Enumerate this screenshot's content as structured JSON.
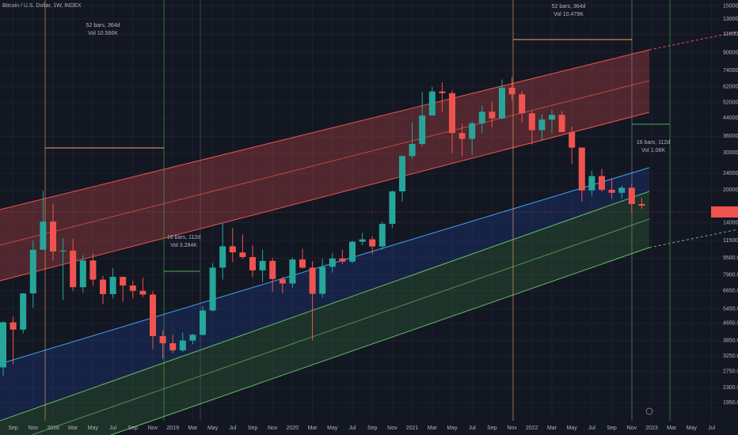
{
  "chart_data": {
    "type": "candlestick",
    "title": "Bitcoin / U.S. Dollar, 1W, INDEX",
    "x": [
      "2017-08",
      "2017-09",
      "2017-10",
      "2017-11",
      "2017-12",
      "2018-01",
      "2018-02",
      "2018-03",
      "2018-04",
      "2018-05",
      "2018-06",
      "2018-07",
      "2018-08",
      "2018-09",
      "2018-10",
      "2018-11",
      "2018-12",
      "2019-01",
      "2019-02",
      "2019-03",
      "2019-04",
      "2019-05",
      "2019-06",
      "2019-07",
      "2019-08",
      "2019-09",
      "2019-10",
      "2019-11",
      "2019-12",
      "2020-01",
      "2020-02",
      "2020-03",
      "2020-04",
      "2020-05",
      "2020-06",
      "2020-07",
      "2020-08",
      "2020-09",
      "2020-10",
      "2020-11",
      "2020-12",
      "2021-01",
      "2021-02",
      "2021-03",
      "2021-04",
      "2021-05",
      "2021-06",
      "2021-07",
      "2021-08",
      "2021-09",
      "2021-10",
      "2021-11",
      "2021-12",
      "2022-01",
      "2022-02",
      "2022-03",
      "2022-04",
      "2022-05",
      "2022-06",
      "2022-07",
      "2022-08",
      "2022-09",
      "2022-10",
      "2022-11",
      "2022-12"
    ],
    "open": [
      2870,
      4700,
      4340,
      6450,
      10400,
      14150,
      10200,
      10300,
      6900,
      9250,
      7500,
      6400,
      7730,
      7030,
      6630,
      6370,
      4040,
      3740,
      3460,
      3850,
      4100,
      5350,
      8550,
      10800,
      10100,
      9600,
      8300,
      9200,
      7550,
      7190,
      9350,
      8550,
      6420,
      8630,
      9450,
      9140,
      11350,
      11650,
      10780,
      13800,
      19700,
      28990,
      33100,
      45200,
      58800,
      57700,
      37300,
      35000,
      41500,
      47100,
      43800,
      61300,
      57000,
      46300,
      38500,
      43200,
      45500,
      37700,
      31800,
      19900,
      23300,
      20050,
      19400,
      20500,
      17150
    ],
    "high": [
      4740,
      5000,
      6470,
      11500,
      19800,
      17200,
      11800,
      11700,
      9800,
      10000,
      7800,
      8500,
      7750,
      7400,
      7680,
      6600,
      4300,
      4100,
      4200,
      4150,
      5600,
      9000,
      13900,
      13200,
      12300,
      10900,
      10400,
      9500,
      7750,
      9560,
      10500,
      9180,
      9450,
      10050,
      10400,
      11450,
      12480,
      12060,
      14100,
      19900,
      29300,
      41950,
      58350,
      61800,
      64850,
      59500,
      41300,
      42400,
      50500,
      52900,
      67000,
      69000,
      59000,
      48000,
      45800,
      48200,
      47400,
      40000,
      31900,
      24700,
      25200,
      22800,
      21000,
      21500,
      18400
    ],
    "low": [
      2600,
      2970,
      4150,
      5500,
      10400,
      9200,
      6000,
      6600,
      6500,
      7030,
      5750,
      6100,
      5880,
      6100,
      6200,
      3500,
      3150,
      3350,
      3400,
      3700,
      4060,
      5300,
      7500,
      9100,
      9400,
      7700,
      7300,
      6550,
      6450,
      6870,
      8450,
      3850,
      6150,
      8100,
      8900,
      8980,
      10950,
      9900,
      10400,
      13200,
      17600,
      28100,
      32300,
      45000,
      47000,
      30000,
      28800,
      29300,
      37300,
      39600,
      43300,
      53300,
      42000,
      32900,
      34300,
      37200,
      37600,
      26700,
      17600,
      18800,
      19600,
      18150,
      18200,
      15500,
      16300
    ],
    "close": [
      4700,
      4340,
      6450,
      10400,
      14150,
      10200,
      10300,
      6900,
      9250,
      7500,
      6400,
      7730,
      7030,
      6630,
      6370,
      4040,
      3740,
      3460,
      3850,
      4100,
      5350,
      8550,
      10800,
      10100,
      9600,
      8300,
      9200,
      7550,
      7190,
      9350,
      8550,
      6420,
      8630,
      9450,
      9140,
      11350,
      11650,
      10780,
      13800,
      19700,
      28990,
      33100,
      45200,
      58800,
      57700,
      37300,
      35000,
      41500,
      47100,
      43800,
      61300,
      57000,
      46300,
      38500,
      43200,
      45500,
      37700,
      31800,
      19900,
      23300,
      20050,
      19400,
      20500,
      17150,
      16850
    ],
    "up_color": "#26a69a",
    "down_color": "#ef5350",
    "log_scale": true,
    "grid": true,
    "ylim": [
      1600,
      160000
    ],
    "yticks": [
      {
        "value": 1950,
        "label": "1950.00"
      },
      {
        "value": 2300,
        "label": "2300.00"
      },
      {
        "value": 2750,
        "label": "2750.00"
      },
      {
        "value": 3250,
        "label": "3250.00"
      },
      {
        "value": 3850,
        "label": "3850.00"
      },
      {
        "value": 4650,
        "label": "4650.00"
      },
      {
        "value": 5450,
        "label": "5450.00"
      },
      {
        "value": 6650,
        "label": "6650.00"
      },
      {
        "value": 7900,
        "label": "7900.00"
      },
      {
        "value": 9500,
        "label": "9500.00"
      },
      {
        "value": 11500,
        "label": "11500.00"
      },
      {
        "value": 14000,
        "label": "14000.00"
      },
      {
        "value": 20000,
        "label": "20000.00"
      },
      {
        "value": 24000,
        "label": "24000.00"
      },
      {
        "value": 30000,
        "label": "30000.00"
      },
      {
        "value": 36000,
        "label": "36000.00"
      },
      {
        "value": 44000,
        "label": "44000.00"
      },
      {
        "value": 52000,
        "label": "52000.00"
      },
      {
        "value": 62000,
        "label": "62000.00"
      },
      {
        "value": 74000,
        "label": "74000.00"
      },
      {
        "value": 90000,
        "label": "90000.00"
      },
      {
        "value": 110000,
        "label": "110000.00"
      },
      {
        "value": 130000,
        "label": "130000.00"
      },
      {
        "value": 150000,
        "label": "150000.00"
      }
    ],
    "xticks": [
      {
        "value": "2017-09",
        "label": "Sep"
      },
      {
        "value": "2017-11",
        "label": "Nov"
      },
      {
        "value": "2018-01",
        "label": "2018"
      },
      {
        "value": "2018-03",
        "label": "Mar"
      },
      {
        "value": "2018-05",
        "label": "May"
      },
      {
        "value": "2018-07",
        "label": "Jul"
      },
      {
        "value": "2018-09",
        "label": "Sep"
      },
      {
        "value": "2018-11",
        "label": "Nov"
      },
      {
        "value": "2019-01",
        "label": "2019"
      },
      {
        "value": "2019-03",
        "label": "Mar"
      },
      {
        "value": "2019-05",
        "label": "May"
      },
      {
        "value": "2019-07",
        "label": "Jul"
      },
      {
        "value": "2019-09",
        "label": "Sep"
      },
      {
        "value": "2019-11",
        "label": "Nov"
      },
      {
        "value": "2020-01",
        "label": "2020"
      },
      {
        "value": "2020-03",
        "label": "Mar"
      },
      {
        "value": "2020-05",
        "label": "May"
      },
      {
        "value": "2020-07",
        "label": "Jul"
      },
      {
        "value": "2020-09",
        "label": "Sep"
      },
      {
        "value": "2020-11",
        "label": "Nov"
      },
      {
        "value": "2021-01",
        "label": "2021"
      },
      {
        "value": "2021-03",
        "label": "Mar"
      },
      {
        "value": "2021-05",
        "label": "May"
      },
      {
        "value": "2021-07",
        "label": "Jul"
      },
      {
        "value": "2021-09",
        "label": "Sep"
      },
      {
        "value": "2021-11",
        "label": "Nov"
      },
      {
        "value": "2022-01",
        "label": "2022"
      },
      {
        "value": "2022-03",
        "label": "Mar"
      },
      {
        "value": "2022-05",
        "label": "May"
      },
      {
        "value": "2022-07",
        "label": "Jul"
      },
      {
        "value": "2022-09",
        "label": "Sep"
      },
      {
        "value": "2022-11",
        "label": "Nov"
      },
      {
        "value": "2023-01",
        "label": "2023"
      },
      {
        "value": "2023-03",
        "label": "Mar"
      },
      {
        "value": "2023-05",
        "label": "May"
      },
      {
        "value": "2023-07",
        "label": "Jul"
      }
    ],
    "annotations": [
      "52 bars, 364d",
      "Vol 10.566K",
      "16 bars, 112d",
      "Vol 3.284K",
      "52 bars, 364d",
      "Vol 10.479K",
      "16 bars, 112d",
      "Vol 1.08K"
    ]
  }
}
